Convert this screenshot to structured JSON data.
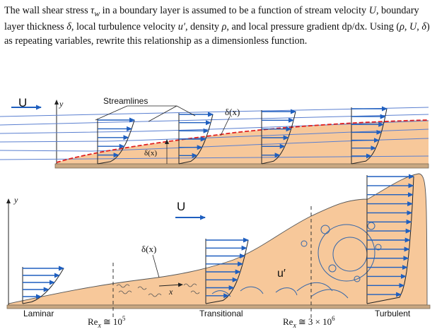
{
  "problem": {
    "part1": "The wall shear stress ",
    "tau_symbol": "τ",
    "tau_sub": "w",
    "part2": " in a boundary layer is assumed to be a function of stream velocity ",
    "U": "U",
    "part3": ", boundary layer thickness ",
    "delta": "δ",
    "part4": ", local turbulence velocity ",
    "u_prime": "u′",
    "part5": ", density ",
    "rho": "ρ",
    "part6": ", and local pressure gradient dp/dx. Using (",
    "rep_rho": "ρ",
    "sep1": ", ",
    "rep_U": "U",
    "sep2": ", ",
    "rep_delta": "δ",
    "part7": ") as repeating variables, rewrite this relationship as a dimensionless function."
  },
  "figure_top": {
    "freestream_label": "U",
    "y_axis_label": "y",
    "streamlines_label": "Streamlines",
    "thickness_label_top": "δ(x)",
    "thickness_label_inner": "δ(x)"
  },
  "figure_bottom": {
    "y_axis_label": "y",
    "freestream_label": "U",
    "thickness_label": "δ(x)",
    "x_axis_label": "x",
    "turbulence_label": "u′",
    "regions": [
      "Laminar",
      "Transitional",
      "Turbulent"
    ],
    "re_lower": {
      "sym": "Re",
      "sub": "x",
      "rel": "≅",
      "val": "10",
      "exp": "5"
    },
    "re_upper": {
      "sym": "Re",
      "sub": "x",
      "rel": "≅",
      "val": "3 × 10",
      "exp": "6"
    }
  },
  "colors": {
    "fluid_fill": "#f7c89a",
    "arrow_blue": "#1f5fbf",
    "streamline_blue": "#5a7fd0",
    "boundary_red": "#e02020",
    "wall": "#c9a882"
  }
}
